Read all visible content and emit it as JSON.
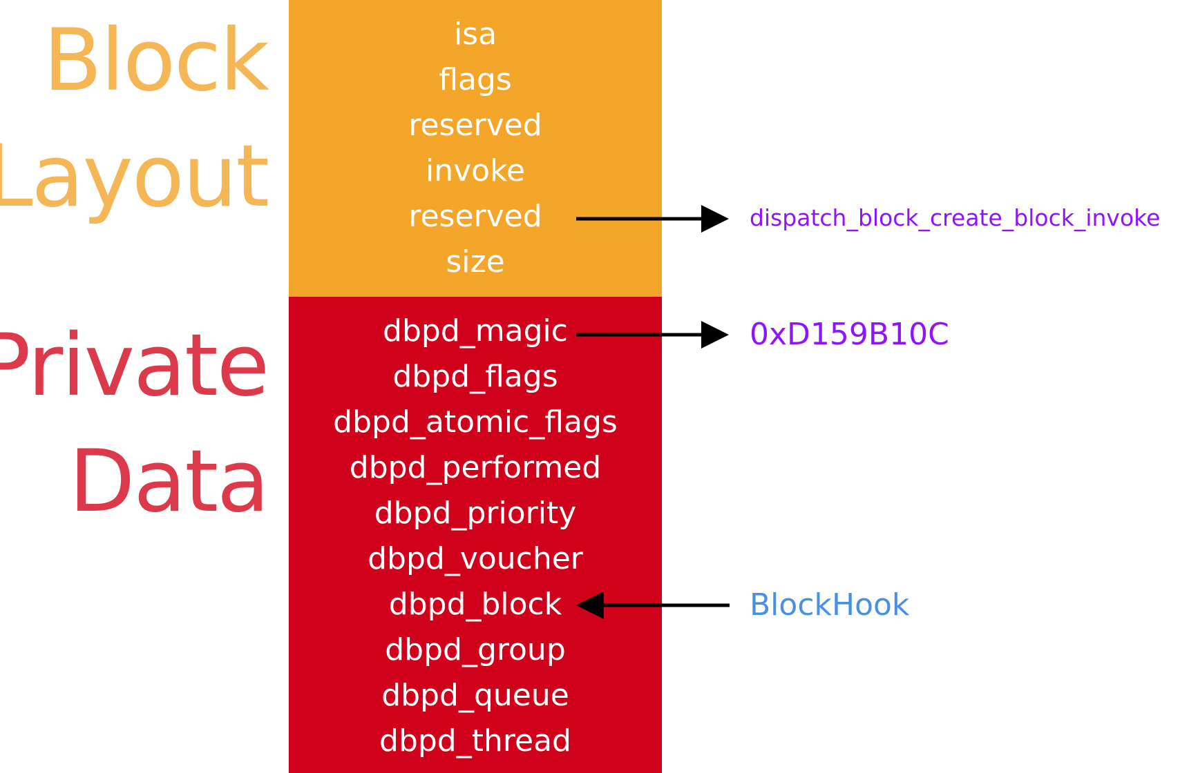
{
  "labels": {
    "block_layout": [
      "Block",
      "Layout"
    ],
    "private_data": [
      "Private",
      "Data"
    ]
  },
  "block_layout_fields": [
    "isa",
    "flags",
    "reserved",
    "invoke",
    "reserved",
    "size"
  ],
  "private_data_fields": [
    "dbpd_magic",
    "dbpd_flags",
    "dbpd_atomic_flags",
    "dbpd_performed",
    "dbpd_priority",
    "dbpd_voucher",
    "dbpd_block",
    "dbpd_group",
    "dbpd_queue",
    "dbpd_thread"
  ],
  "annotations": {
    "invoke_target": "dispatch_block_create_block_invoke",
    "magic_value": "0xD159B10C",
    "block_hook": "BlockHook"
  },
  "colors": {
    "block_layout_bg": "#f4a62a",
    "block_layout_label": "#f5b656",
    "private_data_bg": "#d0021b",
    "private_data_label": "#dc3a4b",
    "purple_text": "#9013fe",
    "blue_text": "#4a90e2",
    "arrow": "#000000"
  }
}
